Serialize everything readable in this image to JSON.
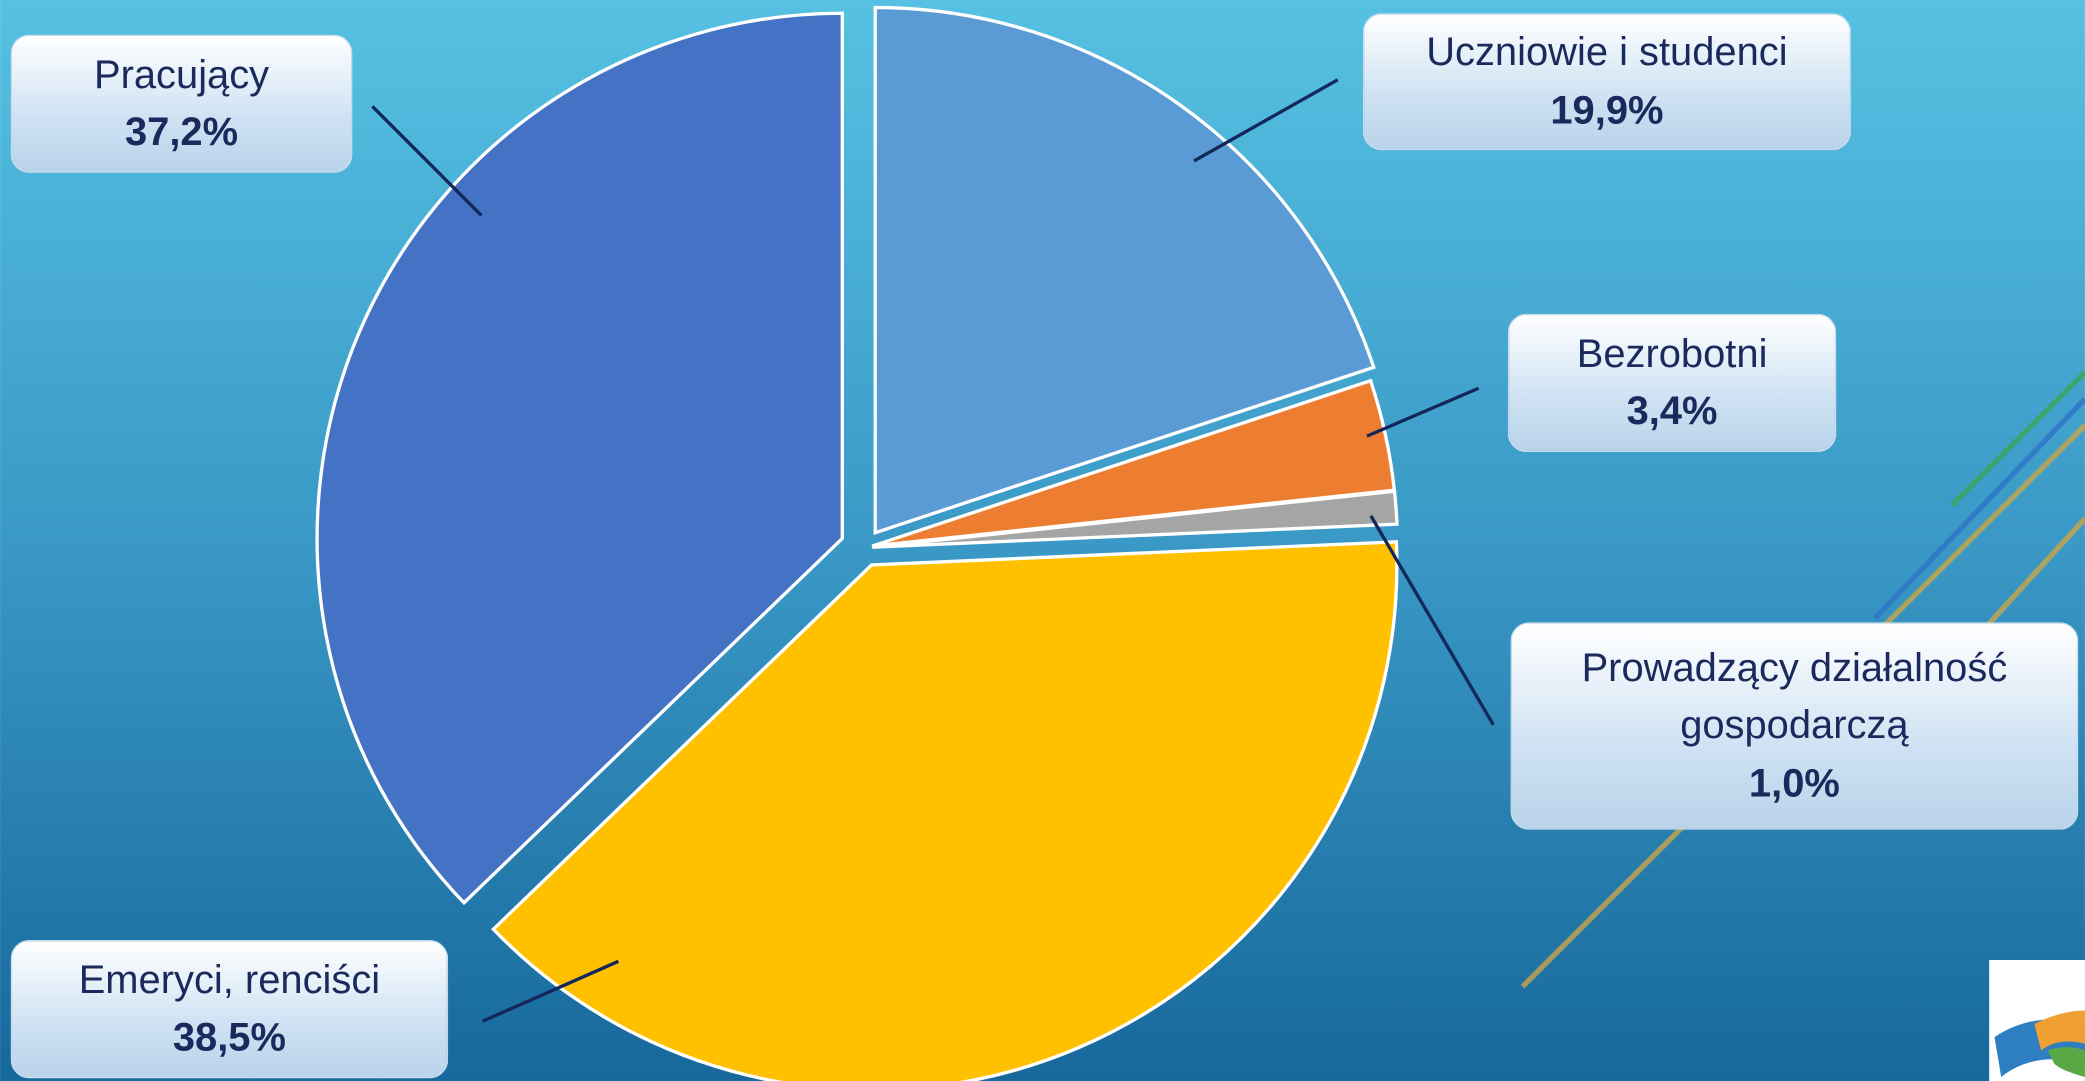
{
  "chart_data": {
    "type": "pie",
    "categories": [
      "Uczniowie i studenci",
      "Bezrobotni",
      "Prowadzący działalność gospodarczą",
      "Emeryci, renciści",
      "Pracujący"
    ],
    "values": [
      19.9,
      3.4,
      1.0,
      38.5,
      37.2
    ],
    "value_labels": [
      "19,9%",
      "3,4%",
      "1,0%",
      "38,5%",
      "37,2%"
    ],
    "colors": [
      "#5b9bd5",
      "#ed7d31",
      "#a5a5a5",
      "#ffc000",
      "#4472c4"
    ]
  }
}
